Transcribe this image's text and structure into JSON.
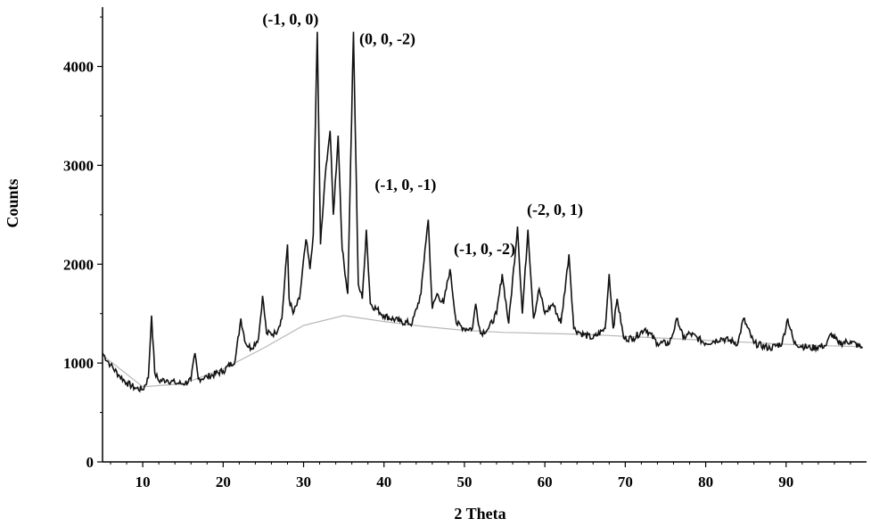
{
  "chart_data": {
    "type": "line",
    "title": "",
    "xlabel": "2 Theta",
    "ylabel": "Counts",
    "xlim": [
      5,
      100
    ],
    "ylim": [
      0,
      4600
    ],
    "x_ticks": [
      10,
      20,
      30,
      40,
      50,
      60,
      70,
      80,
      90
    ],
    "y_ticks": [
      0,
      1000,
      2000,
      3000,
      4000
    ],
    "grid": false,
    "legend": "none",
    "colors": {
      "pattern": "#111111",
      "background_curve": "#b8b8b8"
    },
    "series": [
      {
        "x": [
          5,
          6,
          7,
          8,
          9,
          10,
          10.7,
          11.1,
          11.5,
          12,
          13,
          14,
          15,
          16,
          16.5,
          16.9,
          18,
          20,
          21.5,
          22.2,
          22.8,
          23.5,
          24.4,
          24.9,
          25.4,
          26.5,
          27.3,
          28,
          28.2,
          28.7,
          29.5,
          30.3,
          30.8,
          31.2,
          31.7,
          32.1,
          32.8,
          33.3,
          33.7,
          34.3,
          34.8,
          35.5,
          36.2,
          36.8,
          37.3,
          37.8,
          38.3,
          40,
          42,
          43.5,
          44.6,
          45.1,
          45.5,
          46,
          46.6,
          47.4,
          48.2,
          49,
          50,
          51,
          51.4,
          52,
          53,
          54,
          54.7,
          55.5,
          56.6,
          57.2,
          57.9,
          58.6,
          59.3,
          60,
          61,
          62,
          63,
          63.6,
          64.5,
          66,
          67.5,
          68,
          68.5,
          69,
          69.8,
          71,
          72.5,
          74,
          75.5,
          76.5,
          77.2,
          78,
          80,
          82,
          84,
          84.7,
          86,
          88,
          89.5,
          90.2,
          91,
          93,
          95,
          95.6,
          96.5,
          98,
          99.5
        ],
        "y": [
          1100,
          980,
          880,
          800,
          750,
          730,
          850,
          1480,
          900,
          820,
          830,
          800,
          790,
          830,
          1100,
          840,
          860,
          920,
          1030,
          1450,
          1200,
          1150,
          1250,
          1680,
          1300,
          1300,
          1450,
          2200,
          1650,
          1500,
          1650,
          2250,
          1950,
          2300,
          4350,
          2200,
          3000,
          3350,
          2500,
          3300,
          2150,
          1700,
          4350,
          1800,
          1650,
          2350,
          1600,
          1480,
          1420,
          1400,
          1700,
          2150,
          2450,
          1550,
          1700,
          1600,
          1950,
          1400,
          1350,
          1350,
          1600,
          1300,
          1350,
          1500,
          1900,
          1400,
          2380,
          1500,
          2350,
          1450,
          1750,
          1500,
          1600,
          1400,
          2100,
          1350,
          1300,
          1250,
          1350,
          1900,
          1350,
          1650,
          1250,
          1250,
          1350,
          1200,
          1200,
          1450,
          1250,
          1300,
          1200,
          1250,
          1200,
          1450,
          1200,
          1150,
          1200,
          1450,
          1200,
          1150,
          1180,
          1300,
          1200,
          1220,
          1150
        ]
      }
    ],
    "background": {
      "x": [
        5,
        10,
        15,
        20,
        25,
        30,
        35,
        40,
        45,
        50,
        55,
        60,
        65,
        70,
        75,
        80,
        85,
        90,
        95,
        99.5
      ],
      "y": [
        1080,
        760,
        790,
        940,
        1150,
        1380,
        1480,
        1420,
        1370,
        1330,
        1310,
        1300,
        1290,
        1270,
        1250,
        1230,
        1210,
        1190,
        1175,
        1165
      ]
    },
    "annotations": [
      {
        "text": "(-1, 0, 0)",
        "x": 31.7,
        "y": 4350
      },
      {
        "text": "(0, 0, -2)",
        "x": 36.2,
        "y": 4350
      },
      {
        "text": "(-1, 0, -1)",
        "x": 37.8,
        "y": 2750
      },
      {
        "text": "(-1, 0, -2)",
        "x": 47.4,
        "y": 2100
      },
      {
        "text": "(-2, 0, 1)",
        "x": 56.6,
        "y": 2500
      }
    ]
  }
}
